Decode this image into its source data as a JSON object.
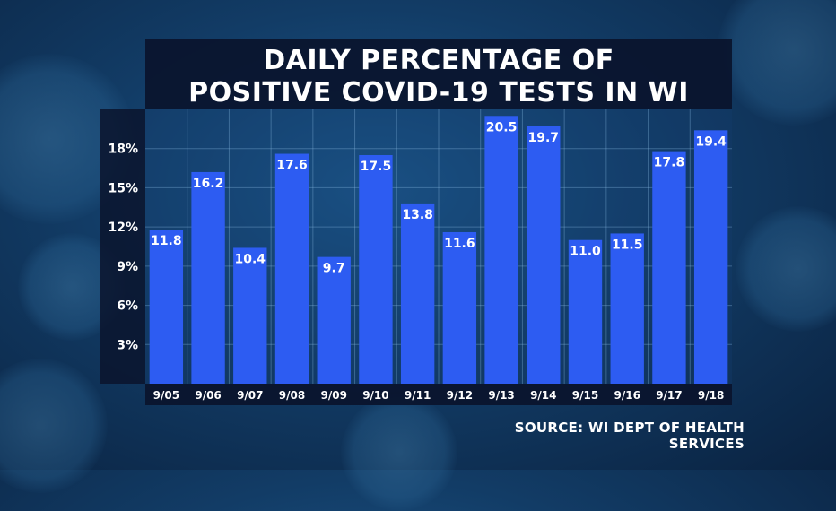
{
  "chart_data": {
    "type": "bar",
    "title_lines": [
      "DAILY PERCENTAGE OF",
      "POSITIVE COVID-19 TESTS IN WI"
    ],
    "categories": [
      "9/05",
      "9/06",
      "9/07",
      "9/08",
      "9/09",
      "9/10",
      "9/11",
      "9/12",
      "9/13",
      "9/14",
      "9/15",
      "9/16",
      "9/17",
      "9/18"
    ],
    "values": [
      11.8,
      16.2,
      10.4,
      17.6,
      9.7,
      17.5,
      13.8,
      11.6,
      20.5,
      19.7,
      11.0,
      11.5,
      17.8,
      19.4
    ],
    "value_labels": [
      "11.8",
      "16.2",
      "10.4",
      "17.6",
      "9.7",
      "17.5",
      "13.8",
      "11.6",
      "20.5",
      "19.7",
      "11.0",
      "11.5",
      "17.8",
      "19.4"
    ],
    "y_ticks": [
      3,
      6,
      9,
      12,
      15,
      18
    ],
    "y_tick_labels": [
      "3%",
      "6%",
      "9%",
      "12%",
      "15%",
      "18%"
    ],
    "ylim": [
      0,
      21
    ],
    "grid": true,
    "bar_color": "#2d5cf2",
    "source": "SOURCE: WI DEPT OF HEALTH SERVICES"
  }
}
